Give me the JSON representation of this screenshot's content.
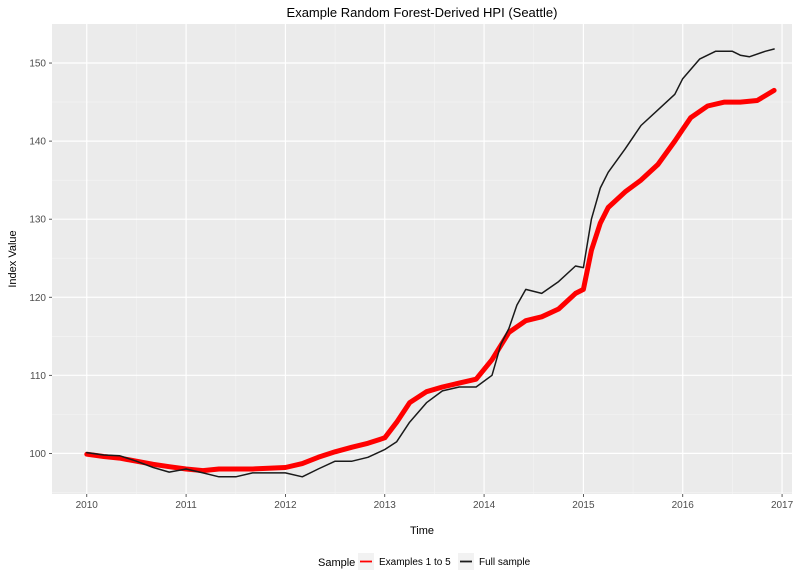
{
  "chart_data": {
    "type": "line",
    "title": "Example Random Forest-Derived HPI (Seattle)",
    "xlabel": "Time",
    "ylabel": "Index Value",
    "xlim": [
      2009.65,
      2017.1
    ],
    "ylim": [
      94.8,
      155.0
    ],
    "x_ticks": [
      2010,
      2011,
      2012,
      2013,
      2014,
      2015,
      2016,
      2017
    ],
    "y_ticks": [
      100,
      110,
      120,
      130,
      140,
      150
    ],
    "grid": true,
    "legend": {
      "title": "Sample",
      "position": "bottom"
    },
    "series": [
      {
        "name": "Examples 1 to 5",
        "color": "#ff0000",
        "x": [
          2010.0,
          2010.17,
          2010.33,
          2010.5,
          2010.67,
          2010.83,
          2011.0,
          2011.17,
          2011.33,
          2011.5,
          2011.67,
          2011.83,
          2012.0,
          2012.17,
          2012.33,
          2012.5,
          2012.67,
          2012.83,
          2013.0,
          2013.12,
          2013.25,
          2013.42,
          2013.58,
          2013.75,
          2013.92,
          2014.08,
          2014.25,
          2014.42,
          2014.58,
          2014.75,
          2014.92,
          2015.0,
          2015.08,
          2015.17,
          2015.25,
          2015.42,
          2015.58,
          2015.75,
          2015.92,
          2016.0,
          2016.08,
          2016.25,
          2016.42,
          2016.58,
          2016.75,
          2016.92
        ],
        "values": [
          99.9,
          99.6,
          99.4,
          99.0,
          98.6,
          98.3,
          98.0,
          97.8,
          98.0,
          98.0,
          98.0,
          98.1,
          98.2,
          98.7,
          99.5,
          100.2,
          100.8,
          101.3,
          102.0,
          104.0,
          106.5,
          107.9,
          108.5,
          109.0,
          109.5,
          112.0,
          115.5,
          117.0,
          117.5,
          118.5,
          120.5,
          121.0,
          126.0,
          129.5,
          131.5,
          133.5,
          135.0,
          137.0,
          140.0,
          141.5,
          143.0,
          144.5,
          145.0,
          145.0,
          145.2,
          146.5
        ]
      },
      {
        "name": "Full sample",
        "color": "#1a1a1a",
        "x": [
          2010.0,
          2010.17,
          2010.33,
          2010.5,
          2010.67,
          2010.83,
          2011.0,
          2011.17,
          2011.33,
          2011.5,
          2011.67,
          2011.83,
          2012.0,
          2012.17,
          2012.33,
          2012.5,
          2012.67,
          2012.83,
          2013.0,
          2013.12,
          2013.25,
          2013.42,
          2013.58,
          2013.75,
          2013.92,
          2014.08,
          2014.17,
          2014.25,
          2014.33,
          2014.42,
          2014.58,
          2014.75,
          2014.92,
          2015.0,
          2015.08,
          2015.17,
          2015.25,
          2015.42,
          2015.58,
          2015.75,
          2015.92,
          2016.0,
          2016.17,
          2016.33,
          2016.5,
          2016.58,
          2016.67,
          2016.83,
          2016.92
        ],
        "values": [
          100.1,
          99.8,
          99.7,
          99.0,
          98.2,
          97.6,
          98.0,
          97.5,
          97.0,
          97.0,
          97.5,
          97.5,
          97.5,
          97.0,
          98.0,
          99.0,
          99.0,
          99.5,
          100.5,
          101.5,
          104.0,
          106.5,
          108.0,
          108.5,
          108.5,
          110.0,
          114.0,
          116.0,
          119.0,
          121.0,
          120.5,
          122.0,
          124.0,
          123.8,
          130.0,
          134.0,
          136.0,
          139.0,
          142.0,
          144.0,
          146.0,
          148.0,
          150.5,
          151.5,
          151.5,
          151.0,
          150.8,
          151.5,
          151.8
        ]
      }
    ]
  }
}
